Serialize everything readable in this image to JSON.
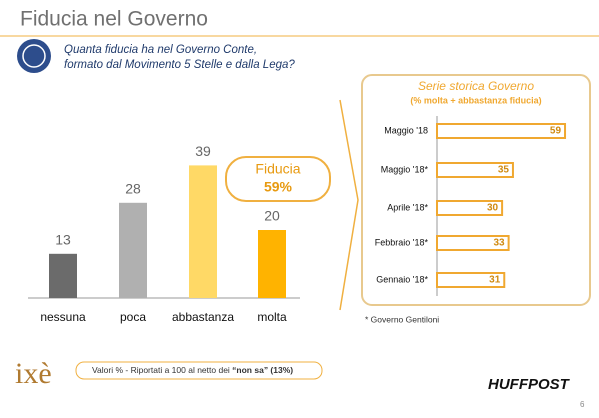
{
  "header": {
    "title": "Fiducia nel Governo"
  },
  "question": [
    "Quanta fiducia ha nel Governo Conte,",
    "formato dal Movimento 5 Stelle e dalla Lega?"
  ],
  "chart_data": [
    {
      "type": "bar",
      "categories": [
        "nessuna",
        "poca",
        "abbastanza",
        "molta"
      ],
      "values": [
        13,
        28,
        39,
        20
      ],
      "colors": [
        "#6b6b6b",
        "#b0b0b0",
        "#ffd966",
        "#ffb300"
      ]
    },
    {
      "type": "hbar",
      "title": "Serie storica Governo",
      "subtitle": "(% molta + abbastanza fiducia)",
      "categories": [
        "Maggio '18",
        "Maggio '18*",
        "Aprile '18*",
        "Febbraio '18*",
        "Gennaio '18*"
      ],
      "values": [
        59,
        35,
        30,
        33,
        31
      ],
      "color": "#f0a830"
    }
  ],
  "callout": {
    "title": "Fiducia",
    "value_label": "59%"
  },
  "footnote": "* Governo Gentiloni",
  "note": {
    "text": "Valori % - Riportati a 100 al netto dei ",
    "bold": "“non sa” (13%)"
  },
  "logo": "ixè",
  "brand": "HUFFPOST",
  "page_number": "6"
}
